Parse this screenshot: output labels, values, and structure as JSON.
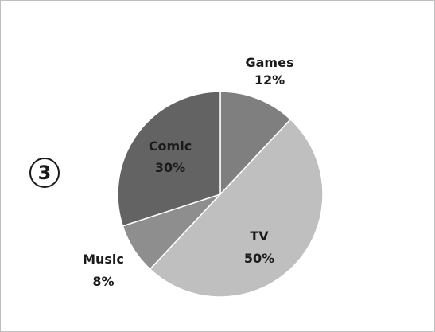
{
  "marker": "3",
  "chart_data": {
    "type": "pie",
    "title": "",
    "categories": [
      "Games",
      "TV",
      "Music",
      "Comic"
    ],
    "values": [
      12,
      50,
      8,
      30
    ],
    "data_labels": [
      "12%",
      "50%",
      "8%",
      "30%"
    ],
    "start_angle_deg": 0,
    "direction": "clockwise",
    "legend": "none",
    "colors": [
      "#7f7f7f",
      "#bfbfbf",
      "#8e8e8e",
      "#636363"
    ],
    "label_colors": [
      "#1a1a1a",
      "#1a1a1a",
      "#1a1a1a",
      "#1a1a1a"
    ]
  }
}
